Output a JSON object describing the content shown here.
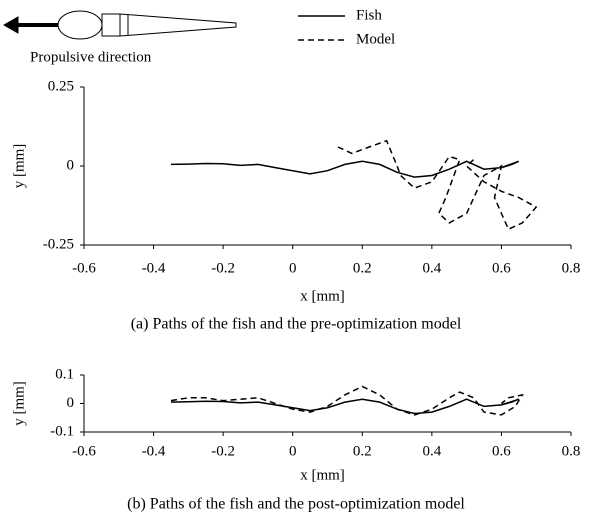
{
  "header": {
    "label": "Propulsive direction"
  },
  "chart_data": [
    {
      "type": "line",
      "xlabel": "x [mm]",
      "ylabel": "y [mm]",
      "caption": "(a) Paths of the fish and the pre-optimization model",
      "xlim": [
        -0.6,
        0.8
      ],
      "ylim": [
        -0.25,
        0.25
      ],
      "xticks": [
        -0.6,
        -0.4,
        -0.2,
        0,
        0.2,
        0.4,
        0.6,
        0.8
      ],
      "yticks": [
        -0.25,
        0,
        0.25
      ],
      "series": [
        {
          "name": "Fish",
          "color": "#000000",
          "style": "solid",
          "x": [
            -0.35,
            -0.3,
            -0.25,
            -0.2,
            -0.15,
            -0.1,
            -0.05,
            0,
            0.05,
            0.1,
            0.15,
            0.2,
            0.25,
            0.3,
            0.35,
            0.4,
            0.45,
            0.5,
            0.52,
            0.55,
            0.6,
            0.65,
            0.63,
            0.6
          ],
          "values": [
            0.005,
            0.006,
            0.008,
            0.007,
            0.002,
            0.005,
            -0.005,
            -0.015,
            -0.025,
            -0.015,
            0.005,
            0.015,
            0.005,
            -0.02,
            -0.035,
            -0.03,
            -0.01,
            0.015,
            0.005,
            -0.01,
            -0.005,
            0.015,
            0.005,
            -0.005
          ]
        },
        {
          "name": "Model",
          "color": "#000000",
          "style": "dashed",
          "x": [
            0.13,
            0.17,
            0.22,
            0.27,
            0.3,
            0.31,
            0.35,
            0.4,
            0.45,
            0.48,
            0.44,
            0.42,
            0.45,
            0.5,
            0.55,
            0.6,
            0.58,
            0.62,
            0.66,
            0.7,
            0.65,
            0.6,
            0.55,
            0.5,
            0.52
          ],
          "values": [
            0.06,
            0.04,
            0.06,
            0.08,
            0.0,
            -0.03,
            -0.07,
            -0.05,
            0.03,
            0.02,
            -0.1,
            -0.15,
            -0.18,
            -0.15,
            -0.03,
            0.0,
            -0.1,
            -0.2,
            -0.18,
            -0.13,
            -0.1,
            -0.08,
            -0.05,
            0.0,
            0.02
          ]
        }
      ]
    },
    {
      "type": "line",
      "xlabel": "x [mm]",
      "ylabel": "y [mm]",
      "caption": "(b) Paths of the fish and the post-optimization model",
      "xlim": [
        -0.6,
        0.8
      ],
      "ylim": [
        -0.1,
        0.1
      ],
      "xticks": [
        -0.6,
        -0.4,
        -0.2,
        0,
        0.2,
        0.4,
        0.6,
        0.8
      ],
      "yticks": [
        -0.1,
        0,
        0.1
      ],
      "series": [
        {
          "name": "Fish",
          "color": "#000000",
          "style": "solid",
          "x": [
            -0.35,
            -0.3,
            -0.25,
            -0.2,
            -0.15,
            -0.1,
            -0.05,
            0,
            0.05,
            0.1,
            0.15,
            0.2,
            0.25,
            0.3,
            0.35,
            0.4,
            0.45,
            0.5,
            0.52,
            0.55,
            0.6,
            0.65,
            0.63,
            0.6
          ],
          "values": [
            0.005,
            0.006,
            0.008,
            0.007,
            0.002,
            0.005,
            -0.005,
            -0.015,
            -0.025,
            -0.015,
            0.005,
            0.015,
            0.005,
            -0.02,
            -0.035,
            -0.03,
            -0.01,
            0.015,
            0.005,
            -0.01,
            -0.005,
            0.015,
            0.005,
            -0.005
          ]
        },
        {
          "name": "Model",
          "color": "#000000",
          "style": "dashed",
          "x": [
            -0.35,
            -0.3,
            -0.25,
            -0.2,
            -0.15,
            -0.1,
            -0.05,
            0,
            0.05,
            0.1,
            0.15,
            0.2,
            0.25,
            0.3,
            0.35,
            0.4,
            0.45,
            0.48,
            0.52,
            0.55,
            0.6,
            0.64,
            0.66,
            0.62,
            0.6
          ],
          "values": [
            0.01,
            0.02,
            0.02,
            0.01,
            0.015,
            0.02,
            0.0,
            -0.02,
            -0.03,
            -0.01,
            0.03,
            0.06,
            0.03,
            -0.02,
            -0.04,
            -0.02,
            0.02,
            0.04,
            0.02,
            -0.03,
            -0.04,
            -0.01,
            0.03,
            0.02,
            0.0
          ]
        }
      ]
    }
  ]
}
